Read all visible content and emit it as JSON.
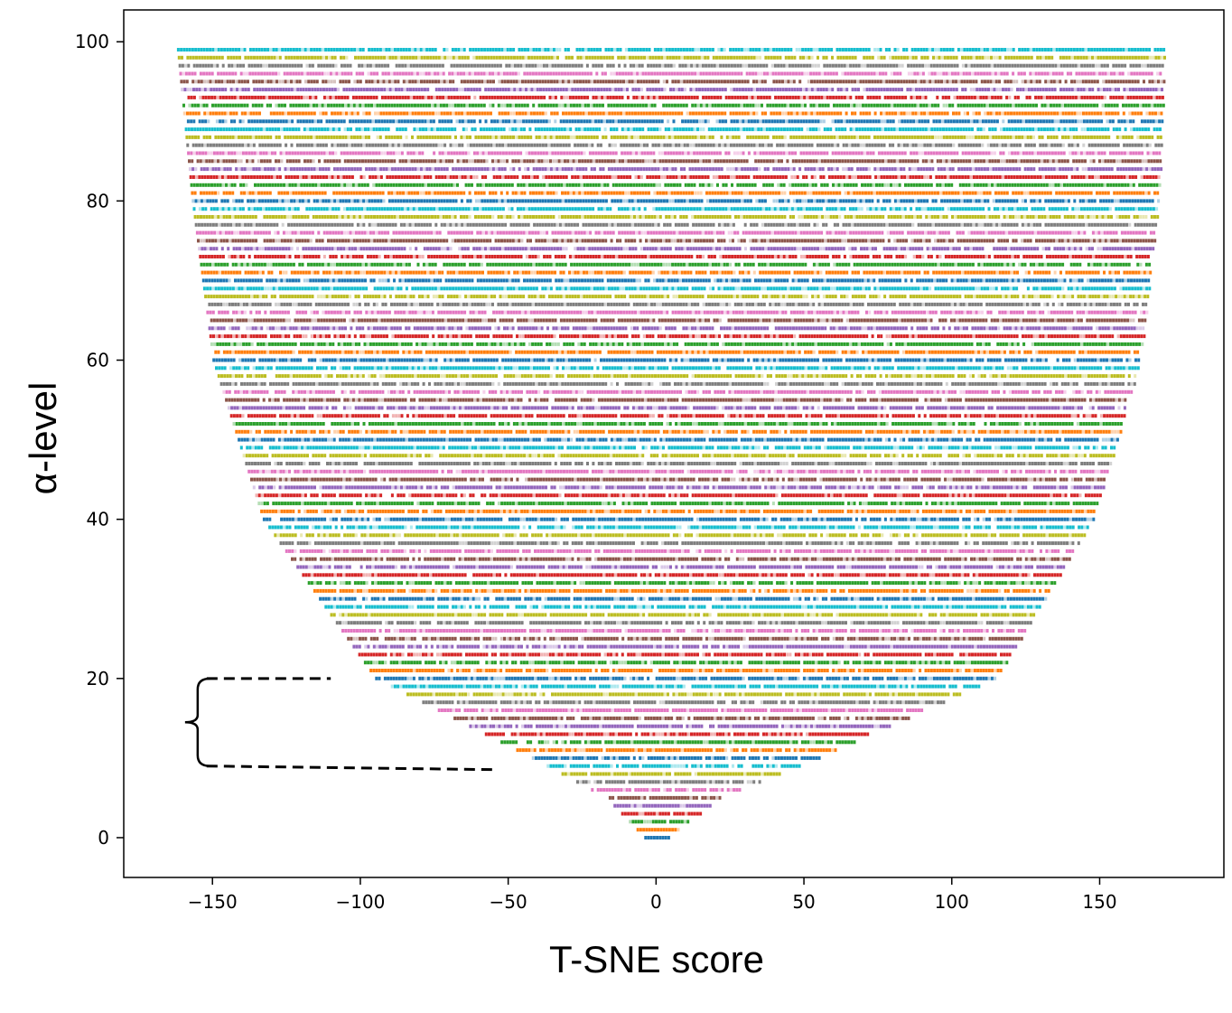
{
  "chart_data": {
    "type": "scatter",
    "title": "",
    "xlabel": "T-SNE score",
    "ylabel": "α-level",
    "xlim": [
      -180,
      192
    ],
    "ylim": [
      -5,
      104
    ],
    "xticks": [
      -150,
      -100,
      -50,
      0,
      50,
      100,
      150
    ],
    "yticks": [
      0,
      20,
      40,
      60,
      80,
      100
    ],
    "xtick_labels": [
      "−150",
      "−100",
      "−50",
      "0",
      "50",
      "100",
      "150"
    ],
    "ytick_labels": [
      "0",
      "20",
      "40",
      "60",
      "80",
      "100"
    ],
    "grid": false,
    "legend": "none",
    "levels": {
      "start": 0,
      "end": 99,
      "step": 1
    },
    "envelope": {
      "description_points_left": [
        [
          0,
          -4
        ],
        [
          5,
          -17
        ],
        [
          10,
          -42
        ],
        [
          20,
          -95
        ],
        [
          40,
          -133
        ],
        [
          60,
          -150
        ],
        [
          80,
          -157
        ],
        [
          99,
          -162
        ]
      ],
      "description_points_right": [
        [
          0,
          4
        ],
        [
          5,
          22
        ],
        [
          10,
          55
        ],
        [
          20,
          115
        ],
        [
          40,
          148
        ],
        [
          60,
          164
        ],
        [
          80,
          170
        ],
        [
          99,
          172
        ]
      ]
    },
    "series_colors": [
      "#1f77b4",
      "#ff7f0e",
      "#2ca02c",
      "#d62728",
      "#9467bd",
      "#8c564b",
      "#e377c2",
      "#7f7f7f",
      "#bcbd22",
      "#17becf"
    ],
    "annotation": {
      "type": "bracket",
      "alpha_range": [
        9,
        20
      ],
      "left_x": -155,
      "top_end_x": -110,
      "bottom_end_x": -55
    }
  }
}
